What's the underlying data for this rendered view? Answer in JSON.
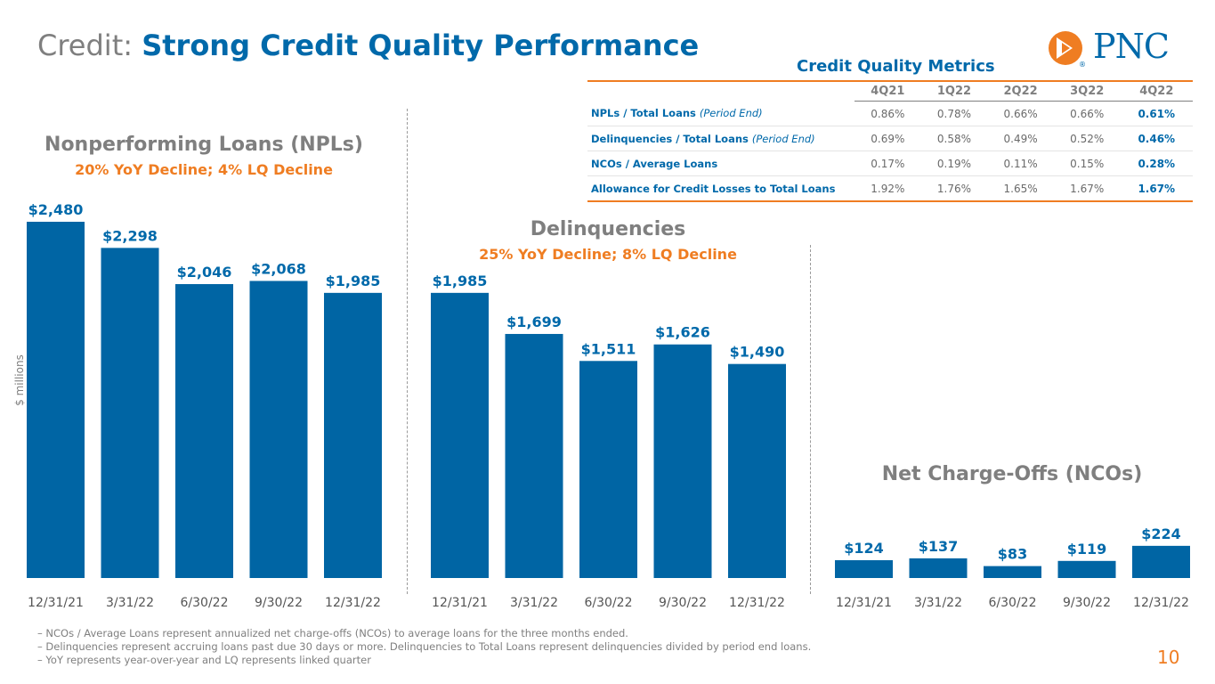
{
  "header": {
    "prefix": "Credit:",
    "title": "Strong Credit Quality Performance",
    "logo_text": "PNC",
    "logo_mark": "®"
  },
  "colors": {
    "bar": "#0065a4",
    "accent": "#ef7d22",
    "title_blue": "#0069aa",
    "gray": "#7f7f7f"
  },
  "y_axis_label": "$ millions",
  "metrics": {
    "title": "Credit Quality Metrics",
    "columns": [
      "4Q21",
      "1Q22",
      "2Q22",
      "3Q22",
      "4Q22"
    ],
    "rows": [
      {
        "label": "NPLs / Total Loans",
        "note": "(Period End)",
        "values": [
          "0.86%",
          "0.78%",
          "0.66%",
          "0.66%",
          "0.61%"
        ]
      },
      {
        "label": "Delinquencies / Total Loans",
        "note": "(Period End)",
        "values": [
          "0.69%",
          "0.58%",
          "0.49%",
          "0.52%",
          "0.46%"
        ]
      },
      {
        "label": "NCOs / Average Loans",
        "note": "",
        "values": [
          "0.17%",
          "0.19%",
          "0.11%",
          "0.15%",
          "0.28%"
        ]
      },
      {
        "label": "Allowance for Credit Losses to Total Loans",
        "note": "",
        "values": [
          "1.92%",
          "1.76%",
          "1.65%",
          "1.67%",
          "1.67%"
        ]
      }
    ]
  },
  "chart_data": [
    {
      "type": "bar",
      "title": "Nonperforming Loans (NPLs)",
      "subtitle": "20% YoY Decline; 4% LQ Decline",
      "categories": [
        "12/31/21",
        "3/31/22",
        "6/30/22",
        "9/30/22",
        "12/31/22"
      ],
      "values": [
        2480,
        2298,
        2046,
        2068,
        1985
      ],
      "labels": [
        "$2,480",
        "$2,298",
        "$2,046",
        "$2,068",
        "$1,985"
      ],
      "ylabel": "$ millions"
    },
    {
      "type": "bar",
      "title": "Delinquencies",
      "subtitle": "25% YoY Decline; 8% LQ Decline",
      "categories": [
        "12/31/21",
        "3/31/22",
        "6/30/22",
        "9/30/22",
        "12/31/22"
      ],
      "values": [
        1985,
        1699,
        1511,
        1626,
        1490
      ],
      "labels": [
        "$1,985",
        "$1,699",
        "$1,511",
        "$1,626",
        "$1,490"
      ]
    },
    {
      "type": "bar",
      "title": "Net Charge-Offs (NCOs)",
      "subtitle": "",
      "categories": [
        "12/31/21",
        "3/31/22",
        "6/30/22",
        "9/30/22",
        "12/31/22"
      ],
      "values": [
        124,
        137,
        83,
        119,
        224
      ],
      "labels": [
        "$124",
        "$137",
        "$83",
        "$119",
        "$224"
      ]
    }
  ],
  "footnotes": [
    "– NCOs / Average Loans represent annualized net charge-offs (NCOs) to average loans for the three months ended.",
    "– Delinquencies represent accruing loans past due 30 days or more. Delinquencies to Total Loans represent delinquencies divided by period end loans.",
    "– YoY represents year-over-year and LQ represents linked quarter"
  ],
  "page_number": "10"
}
